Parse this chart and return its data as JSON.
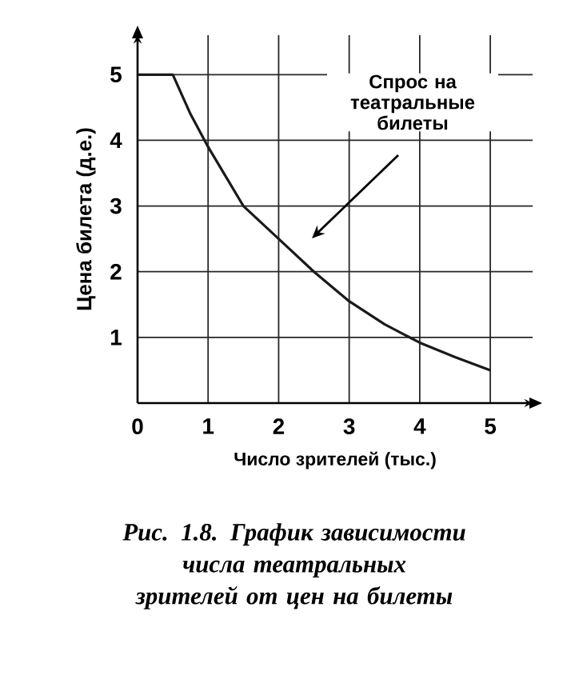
{
  "chart_data": {
    "type": "line",
    "xlabel": "Число зрителей (тыс.)",
    "ylabel": "Цена билета (д.е.)",
    "series": [
      {
        "color": "#1a1a1a",
        "x": [
          0,
          0.5,
          0.75,
          1,
          1.5,
          2,
          2.5,
          3,
          3.5,
          4,
          4.5,
          5
        ],
        "values": [
          5,
          5,
          4.4,
          3.9,
          3.0,
          2.5,
          2.0,
          1.55,
          1.2,
          0.92,
          0.7,
          0.5
        ]
      }
    ],
    "xlim": [
      0,
      5.6
    ],
    "ylim": [
      0,
      5.6
    ],
    "xticks": [
      0,
      1,
      2,
      3,
      4,
      5
    ],
    "yticks": [
      {
        "value": 0,
        "label": null
      },
      1,
      2,
      3,
      4,
      5
    ],
    "grid": true,
    "annotations": [
      "Спрос на театральные билеты",
      "Рис. 1.8. График зависимости числа театральных зрителей от цен на билеты"
    ]
  }
}
